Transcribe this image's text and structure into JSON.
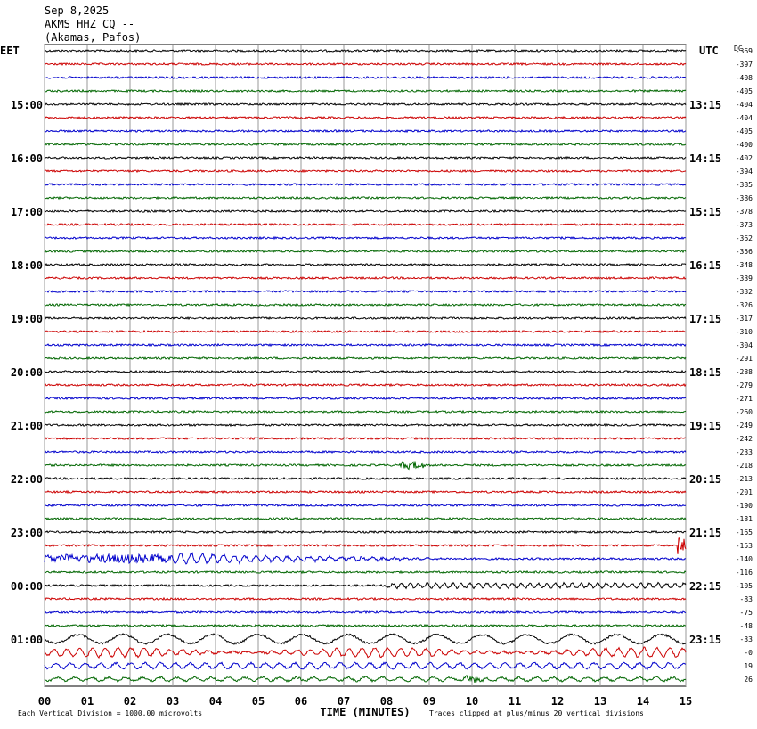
{
  "header": {
    "date": "Sep 8,2025",
    "station": "AKMS HHZ CQ --",
    "location": "(Akamas, Pafos)"
  },
  "left_timezone": "EET",
  "right_timezone": "UTC",
  "dc_header": "DC",
  "left_times": [
    "15:00",
    "16:00",
    "17:00",
    "18:00",
    "19:00",
    "20:00",
    "21:00",
    "22:00",
    "23:00",
    "00:00",
    "01:00"
  ],
  "right_times": [
    "13:15",
    "14:15",
    "15:15",
    "16:15",
    "17:15",
    "18:15",
    "19:15",
    "20:15",
    "21:15",
    "22:15",
    "23:15"
  ],
  "dc_offsets": [
    "-369",
    "-397",
    "-408",
    "-405",
    "-404",
    "-404",
    "-405",
    "-400",
    "-402",
    "-394",
    "-385",
    "-386",
    "-378",
    "-373",
    "-362",
    "-356",
    "-348",
    "-339",
    "-332",
    "-326",
    "-317",
    "-310",
    "-304",
    "-291",
    "-288",
    "-279",
    "-271",
    "-260",
    "-249",
    "-242",
    "-233",
    "-218",
    "-213",
    "-201",
    "-190",
    "-181",
    "-165",
    "-153",
    "-140",
    "-116",
    "-105",
    "-83",
    "-75",
    "-48",
    "-33",
    "-0",
    "19",
    "26"
  ],
  "x_axis": {
    "title": "TIME (MINUTES)",
    "ticks": [
      "00",
      "01",
      "02",
      "03",
      "04",
      "05",
      "06",
      "07",
      "08",
      "09",
      "10",
      "11",
      "12",
      "13",
      "14",
      "15"
    ]
  },
  "footer": {
    "scale": "Each Vertical Division = 1000.00 microvolts",
    "clip": "Traces clipped at plus/minus 20 vertical divisions"
  }
}
